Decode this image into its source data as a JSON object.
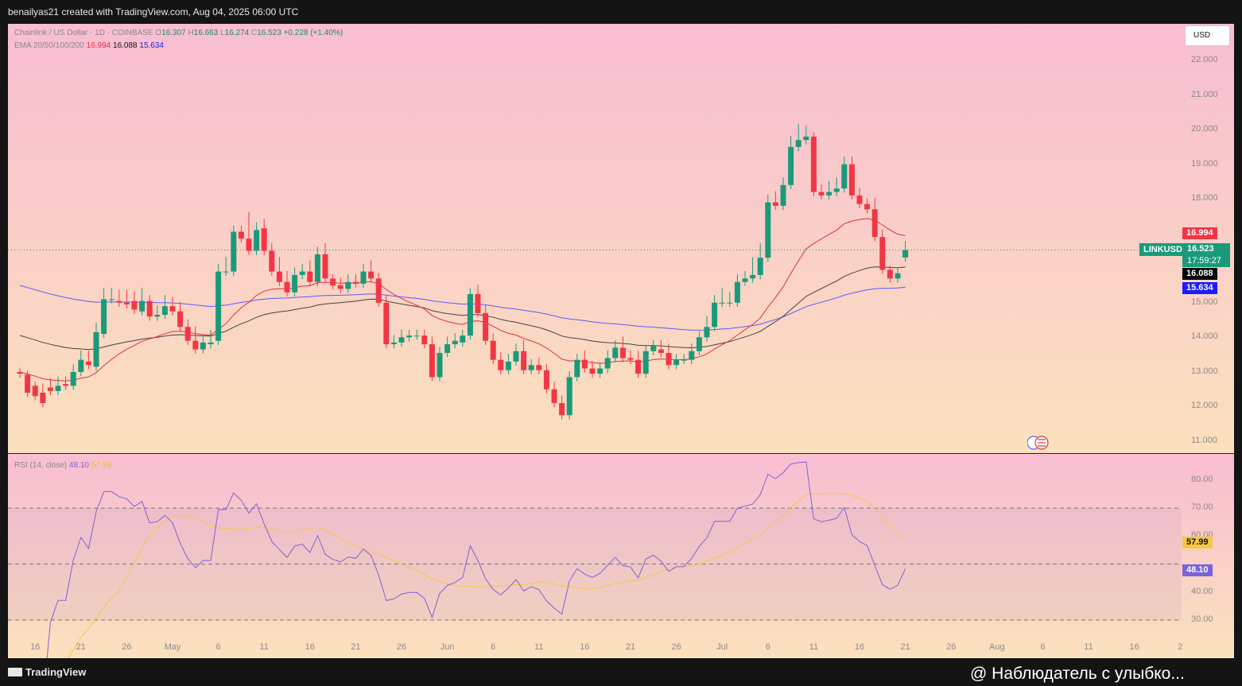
{
  "header": {
    "text": "benailyas21 created with TradingView.com, Aug 04, 2025 06:00 UTC"
  },
  "legend": {
    "title": "Chainlink / US Dollar · 1D · COINBASE",
    "o_label": "O",
    "o": "16.307",
    "h_label": "H",
    "h": "16.663",
    "l_label": "L",
    "l": "16.274",
    "c_label": "C",
    "c": "16.523",
    "change": "+0.228 (+1.40%)",
    "ema_label": "EMA 20/50/100/200",
    "ema20": "16.994",
    "ema50": "16.088",
    "ema100": "15.634"
  },
  "rsi_legend": {
    "label": "RSI (14, close)",
    "rsi": "48.10",
    "ma": "57.99"
  },
  "currency_button": "USD",
  "symbol": "LINKUSD",
  "price_tag": {
    "price": "16.523",
    "countdown": "17:59:27"
  },
  "tags": {
    "ema20": "16.994",
    "ema50": "16.088",
    "ema100": "15.634",
    "rsi": "48.10",
    "rsi_ma": "57.99"
  },
  "price_axis_labels": [
    "22.000",
    "21.000",
    "20.000",
    "19.000",
    "18.000",
    "15.000",
    "14.000",
    "13.000",
    "12.000",
    "11.000"
  ],
  "rsi_axis_labels": [
    "80.00",
    "70.00",
    "60.00",
    "40.00",
    "30.00"
  ],
  "x_axis_labels": [
    "16",
    "21",
    "26",
    "May",
    "6",
    "11",
    "16",
    "21",
    "26",
    "Jun",
    "6",
    "11",
    "16",
    "21",
    "26",
    "Jul",
    "6",
    "11",
    "16",
    "21",
    "26",
    "Aug",
    "6",
    "11",
    "16",
    "2"
  ],
  "footer": {
    "brand": "TradingView",
    "watermark": "@ Наблюдатель с улыбко..."
  },
  "colors": {
    "up": "#1a9a7a",
    "down": "#f23645",
    "ema20": "#e0303f",
    "ema50": "#444444",
    "ema100": "#5b5bff",
    "rsi": "#7d63d9",
    "rsi_ma": "#f5c842"
  },
  "chart_data": {
    "type": "candlestick",
    "title": "Chainlink / US Dollar · 1D · COINBASE",
    "x_start": "2025-04-14",
    "ylim": [
      10.7,
      22.7
    ],
    "candles": [
      [
        13.0,
        12.95,
        12.6
      ],
      [
        12.92,
        12.4,
        12.55
      ],
      [
        12.6,
        12.3,
        12.45
      ],
      [
        12.4,
        12.1,
        12.55
      ],
      [
        12.55,
        12.45,
        12.7
      ],
      [
        12.45,
        12.6,
        12.75
      ],
      [
        12.65,
        12.6,
        12.75
      ],
      [
        12.6,
        13.0,
        13.1
      ],
      [
        13.0,
        13.35,
        13.5
      ],
      [
        13.3,
        13.2,
        13.5
      ],
      [
        13.15,
        14.15,
        14.3
      ],
      [
        14.1,
        15.1,
        15.3
      ],
      [
        15.1,
        15.1,
        15.3
      ],
      [
        15.05,
        15.0,
        15.25
      ],
      [
        15.0,
        14.95,
        15.25
      ],
      [
        15.05,
        14.8,
        15.2
      ],
      [
        14.75,
        15.05,
        15.3
      ],
      [
        15.05,
        14.6,
        15.1
      ],
      [
        14.6,
        14.65,
        14.8
      ],
      [
        14.65,
        14.9,
        15.1
      ],
      [
        14.9,
        14.75,
        15.05
      ],
      [
        14.75,
        14.3,
        14.9
      ],
      [
        14.3,
        13.9,
        14.4
      ],
      [
        13.9,
        13.65,
        14.2
      ],
      [
        13.65,
        13.85,
        13.9
      ],
      [
        13.8,
        13.85,
        14.1
      ],
      [
        13.9,
        15.9,
        16.0
      ],
      [
        15.9,
        15.9,
        16.2
      ],
      [
        15.9,
        17.05,
        17.1
      ],
      [
        17.05,
        16.85,
        17.1
      ],
      [
        16.85,
        16.5,
        17.5
      ],
      [
        16.5,
        17.1,
        17.2
      ],
      [
        17.15,
        16.5,
        17.3
      ],
      [
        16.5,
        15.9,
        16.6
      ],
      [
        15.9,
        15.6,
        16.2
      ],
      [
        15.6,
        15.3,
        15.8
      ],
      [
        15.3,
        15.8,
        15.9
      ],
      [
        15.8,
        15.9,
        16.0
      ],
      [
        15.9,
        15.6,
        16.1
      ],
      [
        15.6,
        16.4,
        16.5
      ],
      [
        16.4,
        15.7,
        16.6
      ],
      [
        15.7,
        15.5,
        15.7
      ],
      [
        15.5,
        15.4,
        15.6
      ],
      [
        15.4,
        15.6,
        15.7
      ],
      [
        15.6,
        15.55,
        15.7
      ],
      [
        15.55,
        15.9,
        16.0
      ],
      [
        15.9,
        15.7,
        16.1
      ],
      [
        15.7,
        15.0,
        15.75
      ],
      [
        15.0,
        13.8,
        15.1
      ],
      [
        13.8,
        13.85,
        13.95
      ],
      [
        13.85,
        14.0,
        14.1
      ],
      [
        14.0,
        14.05,
        14.1
      ],
      [
        14.05,
        14.05,
        14.1
      ],
      [
        14.05,
        13.8,
        14.1
      ],
      [
        13.8,
        12.85,
        13.9
      ],
      [
        12.85,
        13.55,
        13.6
      ],
      [
        13.55,
        13.8,
        13.9
      ],
      [
        13.8,
        13.9,
        14.0
      ],
      [
        13.85,
        14.05,
        14.1
      ],
      [
        14.05,
        15.25,
        15.3
      ],
      [
        15.25,
        14.7,
        15.4
      ],
      [
        14.7,
        13.9,
        14.8
      ],
      [
        13.9,
        13.35,
        14.0
      ],
      [
        13.35,
        13.05,
        13.45
      ],
      [
        13.05,
        13.3,
        13.4
      ],
      [
        13.3,
        13.6,
        13.7
      ],
      [
        13.6,
        13.05,
        13.8
      ],
      [
        13.05,
        13.2,
        13.25
      ],
      [
        13.2,
        13.05,
        13.3
      ],
      [
        13.05,
        12.5,
        13.1
      ],
      [
        12.5,
        12.1,
        12.6
      ],
      [
        12.1,
        11.75,
        12.2
      ],
      [
        11.75,
        12.85,
        12.9
      ],
      [
        12.85,
        13.35,
        13.4
      ],
      [
        13.35,
        13.1,
        13.5
      ],
      [
        13.1,
        12.95,
        13.2
      ],
      [
        12.95,
        13.1,
        13.15
      ],
      [
        13.1,
        13.4,
        13.5
      ],
      [
        13.4,
        13.7,
        13.8
      ],
      [
        13.7,
        13.4,
        13.9
      ],
      [
        13.4,
        13.35,
        13.5
      ],
      [
        13.35,
        12.95,
        13.5
      ],
      [
        12.95,
        13.6,
        13.65
      ],
      [
        13.6,
        13.75,
        13.8
      ],
      [
        13.65,
        13.55,
        13.8
      ],
      [
        13.55,
        13.2,
        13.7
      ],
      [
        13.2,
        13.35,
        13.4
      ],
      [
        13.35,
        13.35,
        13.4
      ],
      [
        13.35,
        13.6,
        13.7
      ],
      [
        13.6,
        14.0,
        14.05
      ],
      [
        14.0,
        14.3,
        14.5
      ],
      [
        14.3,
        15.0,
        15.1
      ],
      [
        15.0,
        15.0,
        15.3
      ],
      [
        15.0,
        15.0,
        15.2
      ],
      [
        15.0,
        15.6,
        15.7
      ],
      [
        15.6,
        15.7,
        15.8
      ],
      [
        15.7,
        15.8,
        16.2
      ],
      [
        15.8,
        16.3,
        16.6
      ],
      [
        16.3,
        17.9,
        18.0
      ],
      [
        17.9,
        17.8,
        18.1
      ],
      [
        17.8,
        18.4,
        18.5
      ],
      [
        18.4,
        19.5,
        19.7
      ],
      [
        19.5,
        19.7,
        20.05
      ],
      [
        19.7,
        19.8,
        20.0
      ],
      [
        19.8,
        18.2,
        19.7
      ],
      [
        18.2,
        18.1,
        18.3
      ],
      [
        18.1,
        18.2,
        18.4
      ],
      [
        18.2,
        18.3,
        18.5
      ],
      [
        18.3,
        19.0,
        19.1
      ],
      [
        19.0,
        18.1,
        19.1
      ],
      [
        18.1,
        17.85,
        18.2
      ],
      [
        17.85,
        17.7,
        17.9
      ],
      [
        17.7,
        16.9,
        17.9
      ],
      [
        16.9,
        15.95,
        17.0
      ],
      [
        15.95,
        15.7,
        15.9
      ],
      [
        15.7,
        15.85,
        15.9
      ],
      [
        16.307,
        16.523,
        16.663
      ]
    ]
  }
}
